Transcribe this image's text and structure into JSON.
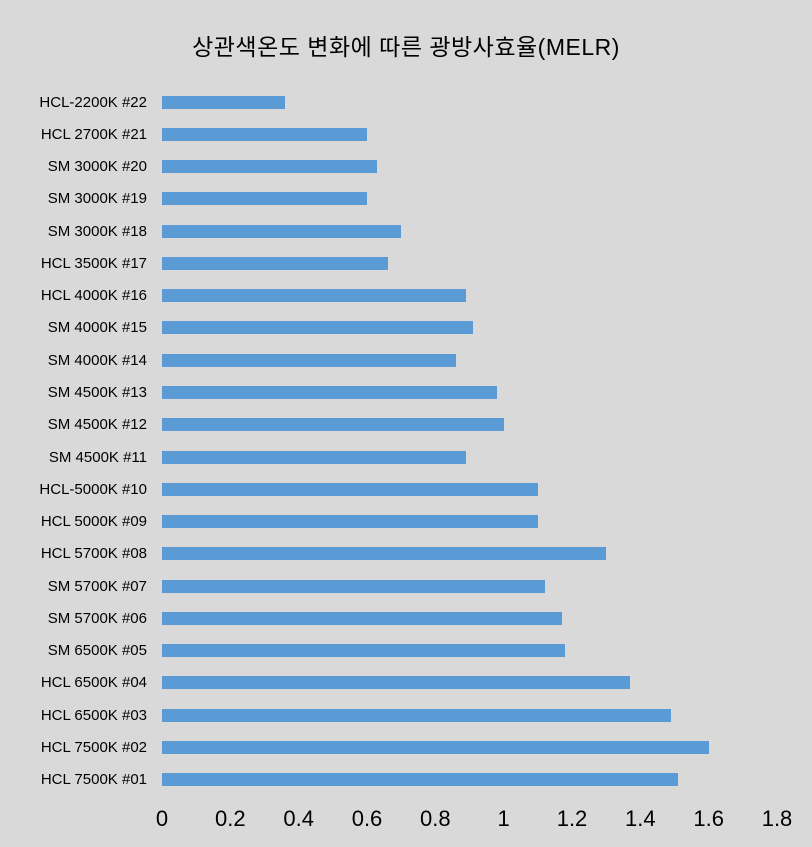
{
  "title": "상관색온도 변화에 따른 광방사효율(MELR)",
  "colors": {
    "background": "#D9D9D9",
    "bar": "#5B9BD5",
    "text": "#000000"
  },
  "chart_data": {
    "type": "bar",
    "orientation": "horizontal",
    "title": "상관색온도 변화에 따른 광방사효율(MELR)",
    "categories": [
      "HCL-2200K #22",
      "HCL 2700K #21",
      "SM 3000K #20",
      "SM 3000K #19",
      "SM 3000K #18",
      "HCL 3500K #17",
      "HCL 4000K #16",
      "SM 4000K #15",
      "SM 4000K #14",
      "SM 4500K #13",
      "SM 4500K #12",
      "SM 4500K #11",
      "HCL-5000K #10",
      "HCL 5000K #09",
      "HCL 5700K #08",
      "SM 5700K #07",
      "SM 5700K #06",
      "SM 6500K #05",
      "HCL 6500K #04",
      "HCL 6500K #03",
      "HCL 7500K #02",
      "HCL 7500K #01"
    ],
    "values": [
      0.36,
      0.6,
      0.63,
      0.6,
      0.7,
      0.66,
      0.89,
      0.91,
      0.86,
      0.98,
      1.0,
      0.89,
      1.1,
      1.1,
      1.3,
      1.12,
      1.17,
      1.18,
      1.37,
      1.49,
      1.6,
      1.51
    ],
    "xlabel": "",
    "ylabel": "",
    "xlim": [
      0,
      1.8
    ],
    "xticks": [
      0,
      0.2,
      0.4,
      0.6,
      0.8,
      1,
      1.2,
      1.4,
      1.6,
      1.8
    ],
    "xtick_labels": [
      "0",
      "0.2",
      "0.4",
      "0.6",
      "0.8",
      "1",
      "1.2",
      "1.4",
      "1.6",
      "1.8"
    ],
    "grid": false,
    "legend": false
  }
}
